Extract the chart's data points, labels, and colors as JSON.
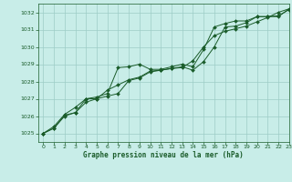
{
  "title": "Graphe pression niveau de la mer (hPa)",
  "background_color": "#c8ede8",
  "grid_color": "#9dcdc6",
  "line_color": "#1a5c2a",
  "xlim": [
    -0.5,
    23
  ],
  "ylim": [
    1024.5,
    1032.5
  ],
  "yticks": [
    1025,
    1026,
    1027,
    1028,
    1029,
    1030,
    1031,
    1032
  ],
  "xticks": [
    0,
    1,
    2,
    3,
    4,
    5,
    6,
    7,
    8,
    9,
    10,
    11,
    12,
    13,
    14,
    15,
    16,
    17,
    18,
    19,
    20,
    21,
    22,
    23
  ],
  "line1_x": [
    0,
    1,
    2,
    3,
    4,
    5,
    6,
    7,
    8,
    9,
    10,
    11,
    12,
    13,
    14,
    15,
    16,
    17,
    18,
    19,
    20,
    21,
    22,
    23
  ],
  "line1_y": [
    1025.0,
    1025.4,
    1026.1,
    1026.5,
    1027.0,
    1027.1,
    1027.3,
    1028.8,
    1028.85,
    1029.0,
    1028.7,
    1028.7,
    1028.85,
    1029.0,
    1028.85,
    1029.85,
    1031.15,
    1031.35,
    1031.5,
    1031.5,
    1031.75,
    1031.75,
    1031.75,
    1032.2
  ],
  "line2_x": [
    0,
    1,
    2,
    3,
    4,
    5,
    6,
    7,
    8,
    9,
    10,
    11,
    12,
    13,
    14,
    15,
    16,
    17,
    18,
    19,
    20,
    21,
    22,
    23
  ],
  "line2_y": [
    1025.0,
    1025.3,
    1026.0,
    1026.2,
    1026.8,
    1027.0,
    1027.15,
    1027.3,
    1028.05,
    1028.2,
    1028.55,
    1028.65,
    1028.75,
    1028.8,
    1029.2,
    1030.0,
    1030.65,
    1030.9,
    1031.05,
    1031.2,
    1031.45,
    1031.7,
    1032.0,
    1032.2
  ],
  "line3_x": [
    0,
    1,
    2,
    3,
    4,
    5,
    6,
    7,
    8,
    9,
    10,
    11,
    12,
    13,
    14,
    15,
    16,
    17,
    18,
    19,
    20,
    21,
    22,
    23
  ],
  "line3_y": [
    1025.0,
    1025.3,
    1026.05,
    1026.2,
    1027.0,
    1027.0,
    1027.5,
    1027.8,
    1028.1,
    1028.25,
    1028.6,
    1028.65,
    1028.75,
    1028.85,
    1028.65,
    1029.15,
    1030.0,
    1031.15,
    1031.2,
    1031.4,
    1031.75,
    1031.75,
    1031.8,
    1032.15
  ]
}
